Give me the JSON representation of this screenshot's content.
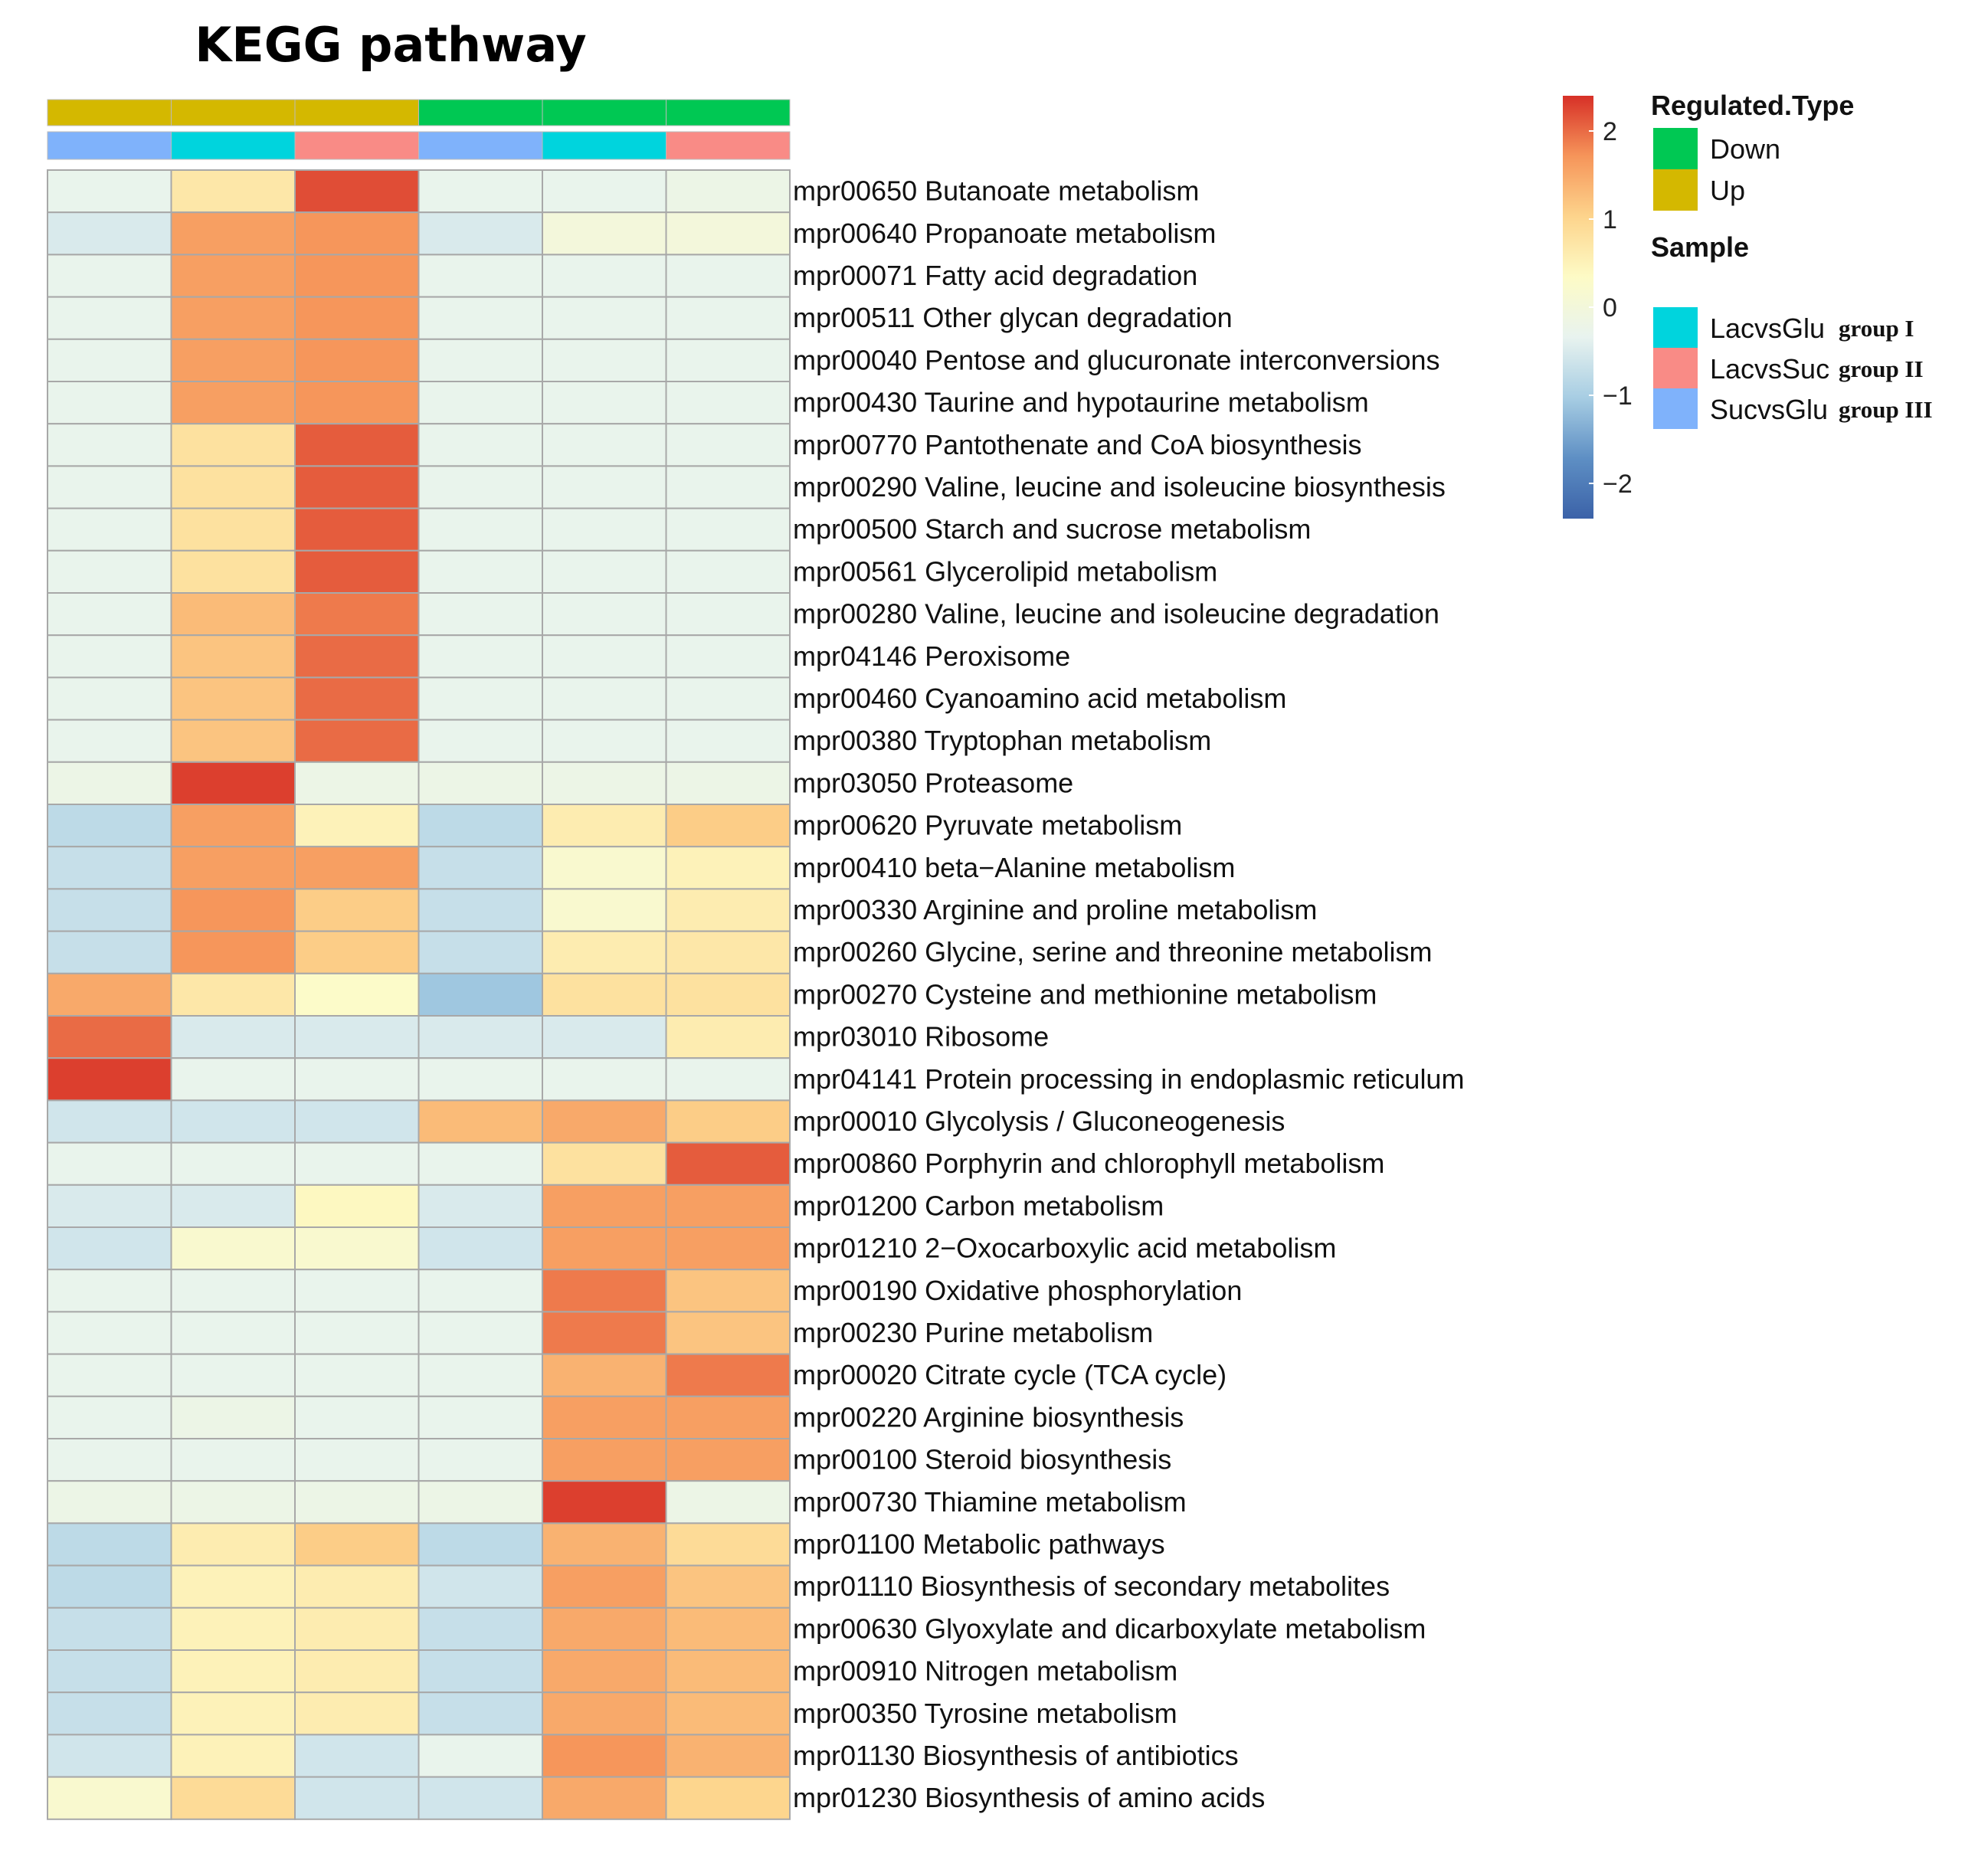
{
  "chart_data": {
    "type": "heatmap",
    "title": "KEGG pathway",
    "columns": [
      {
        "regulated_type": "Up",
        "sample": "SucvsGlu"
      },
      {
        "regulated_type": "Up",
        "sample": "LacvsGlu"
      },
      {
        "regulated_type": "Up",
        "sample": "LacvsSuc"
      },
      {
        "regulated_type": "Down",
        "sample": "SucvsGlu"
      },
      {
        "regulated_type": "Down",
        "sample": "LacvsGlu"
      },
      {
        "regulated_type": "Down",
        "sample": "LacvsSuc"
      }
    ],
    "rows": [
      "mpr00650 Butanoate metabolism",
      "mpr00640 Propanoate metabolism",
      "mpr00071 Fatty acid degradation",
      "mpr00511 Other glycan degradation",
      "mpr00040 Pentose and glucuronate interconversions",
      "mpr00430 Taurine and hypotaurine metabolism",
      "mpr00770 Pantothenate and CoA biosynthesis",
      "mpr00290 Valine, leucine and isoleucine biosynthesis",
      "mpr00500 Starch and sucrose metabolism",
      "mpr00561 Glycerolipid metabolism",
      "mpr00280 Valine, leucine and isoleucine degradation",
      "mpr04146 Peroxisome",
      "mpr00460 Cyanoamino acid metabolism",
      "mpr00380 Tryptophan metabolism",
      "mpr03050 Proteasome",
      "mpr00620 Pyruvate metabolism",
      "mpr00410 beta−Alanine metabolism",
      "mpr00330 Arginine and proline metabolism",
      "mpr00260 Glycine, serine and threonine metabolism",
      "mpr00270 Cysteine and methionine metabolism",
      "mpr03010 Ribosome",
      "mpr04141 Protein processing in endoplasmic reticulum",
      "mpr00010 Glycolysis / Gluconeogenesis",
      "mpr00860 Porphyrin and chlorophyll metabolism",
      "mpr01200 Carbon metabolism",
      "mpr01210 2−Oxocarboxylic acid metabolism",
      "mpr00190 Oxidative phosphorylation",
      "mpr00230 Purine metabolism",
      "mpr00020 Citrate cycle (TCA cycle)",
      "mpr00220 Arginine biosynthesis",
      "mpr00100 Steroid biosynthesis",
      "mpr00730 Thiamine metabolism",
      "mpr01100 Metabolic pathways",
      "mpr01110 Biosynthesis of secondary metabolites",
      "mpr00630 Glyoxylate and dicarboxylate metabolism",
      "mpr00910 Nitrogen metabolism",
      "mpr00350 Tyrosine metabolism",
      "mpr01130 Biosynthesis of antibiotics",
      "mpr01230 Biosynthesis of amino acids"
    ],
    "values": [
      [
        -0.3,
        0.7,
        2.2,
        -0.3,
        -0.3,
        -0.2
      ],
      [
        -0.5,
        1.6,
        1.7,
        -0.5,
        0.0,
        0.0
      ],
      [
        -0.3,
        1.6,
        1.7,
        -0.3,
        -0.3,
        -0.3
      ],
      [
        -0.3,
        1.6,
        1.7,
        -0.3,
        -0.3,
        -0.3
      ],
      [
        -0.3,
        1.6,
        1.7,
        -0.3,
        -0.3,
        -0.3
      ],
      [
        -0.3,
        1.6,
        1.7,
        -0.3,
        -0.3,
        -0.3
      ],
      [
        -0.3,
        0.8,
        2.1,
        -0.3,
        -0.3,
        -0.3
      ],
      [
        -0.3,
        0.8,
        2.1,
        -0.3,
        -0.3,
        -0.3
      ],
      [
        -0.3,
        0.8,
        2.1,
        -0.3,
        -0.3,
        -0.3
      ],
      [
        -0.3,
        0.8,
        2.1,
        -0.3,
        -0.3,
        -0.3
      ],
      [
        -0.3,
        1.3,
        1.9,
        -0.3,
        -0.3,
        -0.3
      ],
      [
        -0.3,
        1.2,
        2.0,
        -0.3,
        -0.3,
        -0.3
      ],
      [
        -0.3,
        1.2,
        2.0,
        -0.3,
        -0.3,
        -0.3
      ],
      [
        -0.3,
        1.2,
        2.0,
        -0.3,
        -0.3,
        -0.3
      ],
      [
        -0.2,
        2.3,
        -0.2,
        -0.2,
        -0.2,
        -0.2
      ],
      [
        -0.8,
        1.6,
        0.5,
        -0.8,
        0.6,
        1.1
      ],
      [
        -0.7,
        1.6,
        1.6,
        -0.7,
        0.2,
        0.5
      ],
      [
        -0.7,
        1.7,
        1.1,
        -0.7,
        0.2,
        0.6
      ],
      [
        -0.7,
        1.7,
        1.1,
        -0.7,
        0.6,
        0.7
      ],
      [
        1.5,
        0.7,
        0.3,
        -1.1,
        0.8,
        0.8
      ],
      [
        2.0,
        -0.5,
        -0.5,
        -0.5,
        -0.5,
        0.6
      ],
      [
        2.3,
        -0.3,
        -0.3,
        -0.3,
        -0.3,
        -0.3
      ],
      [
        -0.6,
        -0.6,
        -0.6,
        1.3,
        1.5,
        1.1
      ],
      [
        -0.3,
        -0.3,
        -0.3,
        -0.3,
        0.8,
        2.1
      ],
      [
        -0.5,
        -0.5,
        0.4,
        -0.5,
        1.6,
        1.6
      ],
      [
        -0.6,
        0.2,
        0.2,
        -0.6,
        1.6,
        1.6
      ],
      [
        -0.3,
        -0.3,
        -0.3,
        -0.3,
        1.9,
        1.2
      ],
      [
        -0.3,
        -0.3,
        -0.3,
        -0.3,
        1.9,
        1.2
      ],
      [
        -0.3,
        -0.3,
        -0.3,
        -0.3,
        1.4,
        1.9
      ],
      [
        -0.3,
        -0.2,
        -0.3,
        -0.3,
        1.6,
        1.6
      ],
      [
        -0.3,
        -0.3,
        -0.3,
        -0.3,
        1.6,
        1.6
      ],
      [
        -0.2,
        -0.2,
        -0.2,
        -0.2,
        2.3,
        -0.2
      ],
      [
        -0.8,
        0.6,
        1.1,
        -0.8,
        1.4,
        0.9
      ],
      [
        -0.8,
        0.5,
        0.6,
        -0.6,
        1.6,
        1.2
      ],
      [
        -0.7,
        0.5,
        0.6,
        -0.7,
        1.5,
        1.3
      ],
      [
        -0.7,
        0.5,
        0.6,
        -0.7,
        1.5,
        1.3
      ],
      [
        -0.7,
        0.5,
        0.6,
        -0.7,
        1.5,
        1.3
      ],
      [
        -0.6,
        0.5,
        -0.6,
        -0.3,
        1.7,
        1.4
      ],
      [
        0.2,
        0.9,
        -0.6,
        -0.6,
        1.5,
        1.0
      ]
    ],
    "color_scale": {
      "min": -2.4,
      "max": 2.4,
      "stops": [
        "#3b62a8",
        "#5e8fc4",
        "#a7cde3",
        "#e8f3ef",
        "#fdfbc6",
        "#fdd48c",
        "#f6955a",
        "#d73027"
      ],
      "ticks": [
        2,
        1,
        0,
        -1,
        -2
      ],
      "tick_labels": [
        "2",
        "1",
        "0",
        "−1",
        "−2"
      ]
    },
    "legend": {
      "regulated_type": {
        "title": "Regulated.Type",
        "items": [
          {
            "label": "Down",
            "color": "#00c853"
          },
          {
            "label": "Up",
            "color": "#d4b800"
          }
        ]
      },
      "sample": {
        "title": "Sample",
        "items": [
          {
            "label": "LacvsGlu",
            "group": "group I",
            "color": "#00d4dd"
          },
          {
            "label": "LacvsSuc",
            "group": "group II",
            "color": "#f98b86"
          },
          {
            "label": "SucvsGlu",
            "group": "group III",
            "color": "#7fb2fb"
          }
        ]
      }
    }
  }
}
